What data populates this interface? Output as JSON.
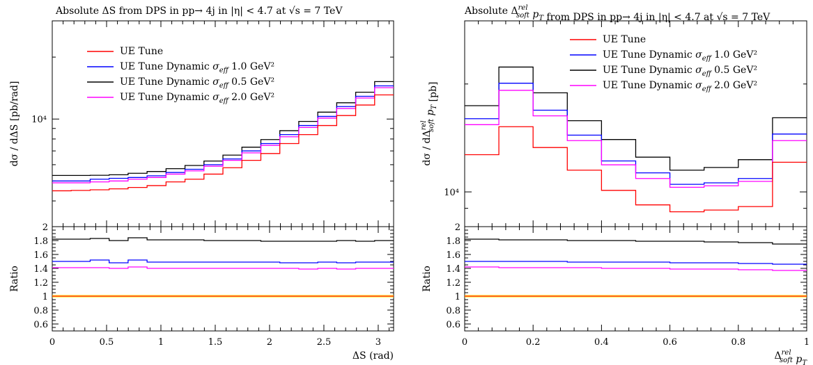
{
  "colors": {
    "ue_tune": "#ff0000",
    "dyn_1_0": "#0000ff",
    "dyn_0_5": "#000000",
    "dyn_2_0": "#ff00ff",
    "ratio_band": "#ffff00"
  },
  "legend": [
    "UE Tune",
    "UE Tune Dynamic σ_eff 1.0 GeV²",
    "UE Tune Dynamic σ_eff 0.5 GeV²",
    "UE Tune Dynamic σ_eff 2.0 GeV²"
  ],
  "chart_data": [
    {
      "type": "line",
      "title": "Absolute ΔS from DPS in pp→ 4j in |η| < 4.7 at √s = 7 TeV",
      "ylabel": "dσ / dΔS [pb/rad]",
      "xlabel": "ΔS (rad)",
      "yscale": "log",
      "ylim": [
        3000,
        30000
      ],
      "xlim": [
        0,
        3.1416
      ],
      "xticks": [
        "0",
        "0.5",
        "1",
        "1.5",
        "2",
        "2.5",
        "3"
      ],
      "ytick_label": "10⁴",
      "legend_position": "upper-left",
      "x_edges": [
        0,
        0.1745,
        0.349,
        0.5236,
        0.6981,
        0.8727,
        1.0472,
        1.2217,
        1.3963,
        1.5708,
        1.7453,
        1.9199,
        2.0944,
        2.2689,
        2.4435,
        2.618,
        2.7925,
        2.967,
        3.1416
      ],
      "series": [
        {
          "name": "UE Tune",
          "color_key": "ue_tune",
          "values": [
            4480,
            4500,
            4530,
            4580,
            4650,
            4750,
            4950,
            5100,
            5400,
            5800,
            6300,
            6800,
            7600,
            8400,
            9300,
            10400,
            11700,
            13100
          ]
        },
        {
          "name": "UE Tune Dynamic σ_eff 1.0 GeV²",
          "color_key": "dyn_1_0",
          "values": [
            5000,
            5000,
            5100,
            5150,
            5200,
            5300,
            5500,
            5700,
            6000,
            6400,
            7000,
            7600,
            8400,
            9300,
            10300,
            11500,
            12900,
            14500
          ]
        },
        {
          "name": "UE Tune Dynamic σ_eff 0.5 GeV²",
          "color_key": "dyn_0_5",
          "values": [
            5320,
            5320,
            5330,
            5360,
            5450,
            5560,
            5740,
            5950,
            6250,
            6680,
            7300,
            7950,
            8780,
            9740,
            10800,
            12000,
            13500,
            15200
          ]
        },
        {
          "name": "UE Tune Dynamic σ_eff 2.0 GeV²",
          "color_key": "dyn_2_0",
          "values": [
            4900,
            4900,
            4950,
            5000,
            5100,
            5200,
            5400,
            5600,
            5900,
            6300,
            6850,
            7450,
            8200,
            9100,
            10100,
            11250,
            12650,
            14200
          ]
        }
      ]
    },
    {
      "type": "line",
      "title": "Absolute Δ^rel_soft p_T from DPS in pp→ 4j in |η| < 4.7 at √s = 7 TeV",
      "ylabel": "dσ / dΔ^rel_soft p_T [pb]",
      "xlabel": "Δ^rel_soft p_T",
      "yscale": "log",
      "ylim": [
        8000,
        30000
      ],
      "xlim": [
        0,
        1
      ],
      "xticks": [
        "0",
        "0.2",
        "0.4",
        "0.6",
        "0.8",
        "1"
      ],
      "ytick_label": "10⁴",
      "legend_position": "upper-right",
      "x_edges": [
        0,
        0.1,
        0.2,
        0.3,
        0.4,
        0.5,
        0.6,
        0.7,
        0.8,
        0.9,
        1.0
      ],
      "series": [
        {
          "name": "UE Tune",
          "color_key": "ue_tune",
          "values": [
            12700,
            15200,
            13300,
            11500,
            10100,
            9200,
            8800,
            8900,
            9100,
            12100
          ]
        },
        {
          "name": "UE Tune Dynamic σ_eff 1.0 GeV²",
          "color_key": "dyn_1_0",
          "values": [
            16000,
            20100,
            16900,
            14400,
            12200,
            11300,
            10500,
            10600,
            10900,
            14500
          ]
        },
        {
          "name": "UE Tune Dynamic σ_eff 0.5 GeV²",
          "color_key": "dyn_0_5",
          "values": [
            17400,
            22300,
            18900,
            15800,
            14000,
            12500,
            11500,
            11700,
            12300,
            16100
          ]
        },
        {
          "name": "UE Tune Dynamic σ_eff 2.0 GeV²",
          "color_key": "dyn_2_0",
          "values": [
            15400,
            19200,
            16300,
            13900,
            11900,
            10900,
            10300,
            10400,
            10700,
            13900
          ]
        }
      ]
    },
    {
      "type": "line",
      "ylabel": "Ratio",
      "xlabel": "ΔS (rad)",
      "ylim": [
        0.5,
        2.0
      ],
      "yticks": [
        "0.6",
        "0.8",
        "1",
        "1.2",
        "1.4",
        "1.6",
        "1.8",
        "2"
      ],
      "series": [
        {
          "name": "UE Tune",
          "color_key": "ue_tune",
          "values": [
            1,
            1,
            1,
            1,
            1,
            1,
            1,
            1,
            1,
            1,
            1,
            1,
            1,
            1,
            1,
            1,
            1,
            1
          ]
        },
        {
          "name": "UE Tune Dynamic σ_eff 1.0 GeV²",
          "color_key": "dyn_1_0",
          "values": [
            1.5,
            1.5,
            1.52,
            1.48,
            1.52,
            1.49,
            1.49,
            1.49,
            1.49,
            1.49,
            1.49,
            1.49,
            1.48,
            1.48,
            1.49,
            1.48,
            1.49,
            1.49
          ]
        },
        {
          "name": "UE Tune Dynamic σ_eff 0.5 GeV²",
          "color_key": "dyn_0_5",
          "values": [
            1.82,
            1.82,
            1.83,
            1.8,
            1.84,
            1.81,
            1.81,
            1.81,
            1.8,
            1.8,
            1.8,
            1.79,
            1.79,
            1.79,
            1.79,
            1.8,
            1.79,
            1.8
          ]
        },
        {
          "name": "UE Tune Dynamic σ_eff 2.0 GeV²",
          "color_key": "dyn_2_0",
          "values": [
            1.41,
            1.41,
            1.41,
            1.4,
            1.42,
            1.4,
            1.4,
            1.4,
            1.4,
            1.4,
            1.4,
            1.4,
            1.4,
            1.39,
            1.4,
            1.39,
            1.4,
            1.4
          ]
        }
      ]
    },
    {
      "type": "line",
      "ylabel": "Ratio",
      "xlabel": "Δ^rel_soft p_T",
      "ylim": [
        0.5,
        2.0
      ],
      "yticks": [
        "0.6",
        "0.8",
        "1",
        "1.2",
        "1.4",
        "1.6",
        "1.8",
        "2"
      ],
      "series": [
        {
          "name": "UE Tune",
          "color_key": "ue_tune",
          "values": [
            1,
            1,
            1,
            1,
            1,
            1,
            1,
            1,
            1,
            1
          ]
        },
        {
          "name": "UE Tune Dynamic σ_eff 1.0 GeV²",
          "color_key": "dyn_1_0",
          "values": [
            1.5,
            1.5,
            1.5,
            1.49,
            1.49,
            1.49,
            1.48,
            1.48,
            1.47,
            1.46
          ]
        },
        {
          "name": "UE Tune Dynamic σ_eff 0.5 GeV²",
          "color_key": "dyn_0_5",
          "values": [
            1.82,
            1.81,
            1.81,
            1.8,
            1.8,
            1.79,
            1.79,
            1.78,
            1.77,
            1.75
          ]
        },
        {
          "name": "UE Tune Dynamic σ_eff 2.0 GeV²",
          "color_key": "dyn_2_0",
          "values": [
            1.42,
            1.41,
            1.41,
            1.41,
            1.4,
            1.4,
            1.39,
            1.39,
            1.38,
            1.37
          ]
        }
      ]
    }
  ]
}
